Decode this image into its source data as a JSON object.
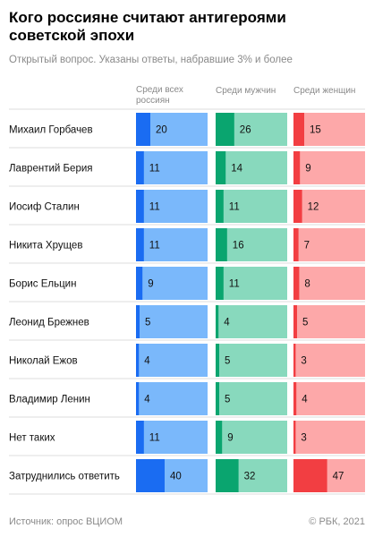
{
  "title": "Кого россияне считают антигероями советской эпохи",
  "subtitle": "Открытый вопрос. Указаны ответы, набравшие 3% и более",
  "footer": {
    "source": "Источник: опрос ВЦИОМ",
    "copyright": "© РБК, 2021"
  },
  "chart_data": {
    "type": "bar",
    "categories": [
      "Михаил Горбачев",
      "Лаврентий Берия",
      "Иосиф Сталин",
      "Никита Хрущев",
      "Борис Ельцин",
      "Леонид Брежнев",
      "Николай Ежов",
      "Владимир Ленин",
      "Нет таких",
      "Затруднились ответить"
    ],
    "series": [
      {
        "name": "Среди всех россиян",
        "values": [
          20,
          11,
          11,
          11,
          9,
          5,
          4,
          4,
          11,
          40
        ],
        "color": "#1a6cf2",
        "bg": "#7ab8fb"
      },
      {
        "name": "Среди мужчин",
        "values": [
          26,
          14,
          11,
          16,
          11,
          4,
          5,
          5,
          9,
          32
        ],
        "color": "#0aa56f",
        "bg": "#88d9bd"
      },
      {
        "name": "Среди женщин",
        "values": [
          15,
          9,
          12,
          7,
          8,
          5,
          3,
          4,
          3,
          47
        ],
        "color": "#f23e42",
        "bg": "#fda8a9"
      }
    ],
    "xlim": [
      0,
      100
    ]
  }
}
